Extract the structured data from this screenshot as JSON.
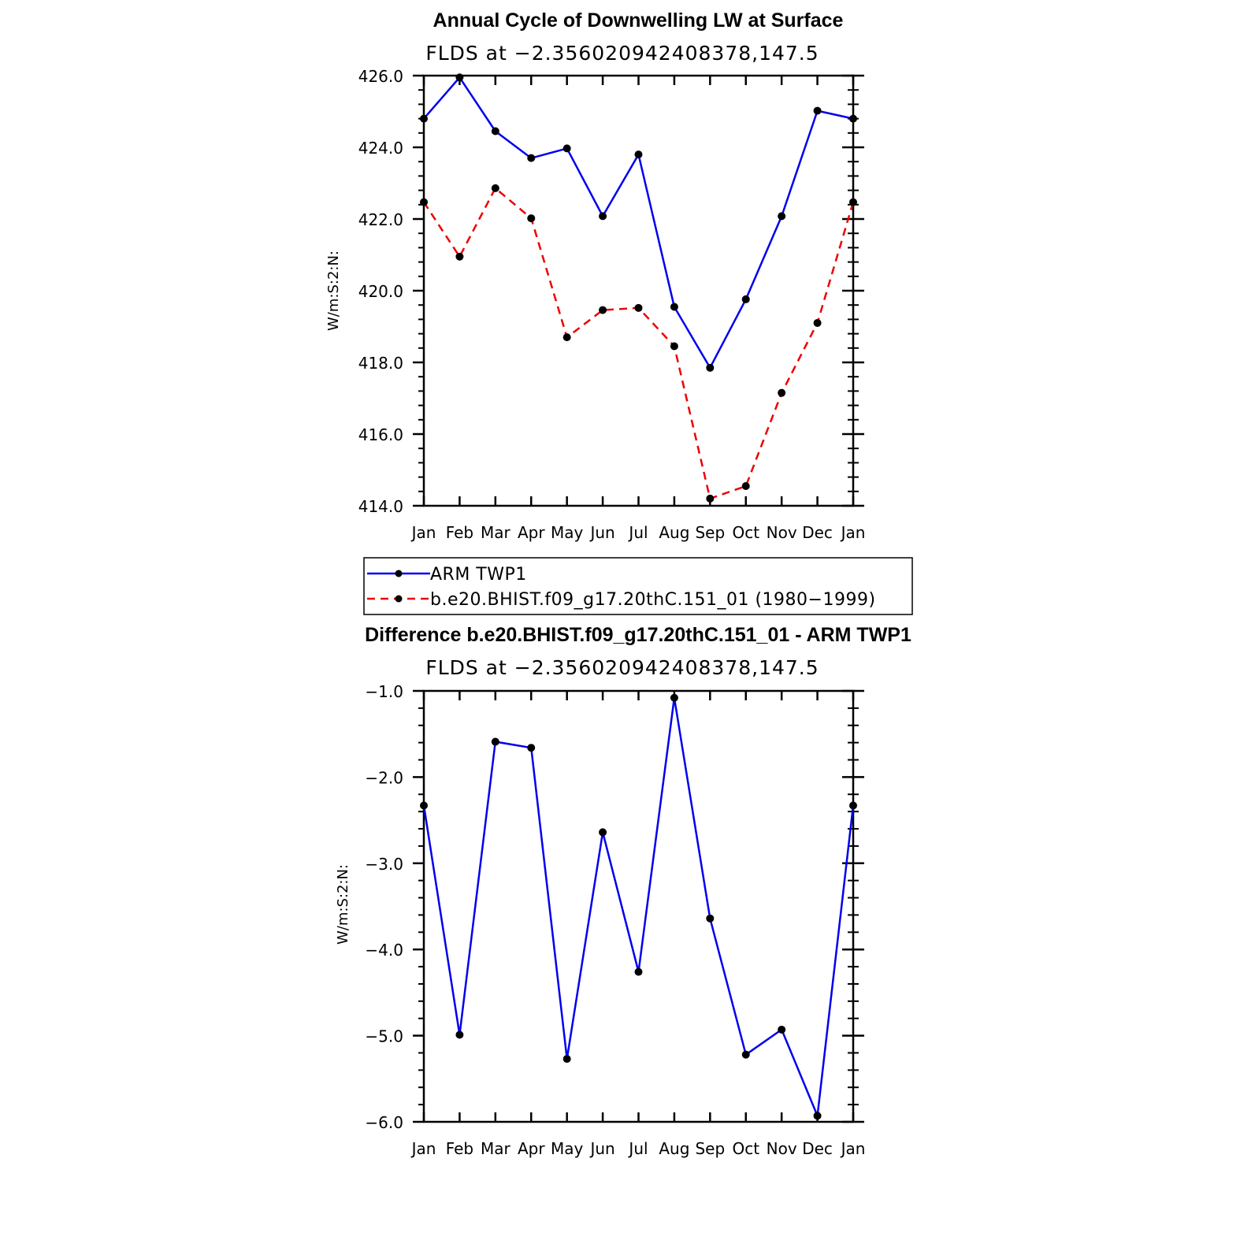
{
  "chart_data": [
    {
      "type": "line",
      "title": "Annual Cycle of Downwelling LW at Surface",
      "subtitle": "FLDS at −2.356020942408378,147.5",
      "xlabel": "",
      "ylabel": "W/m:S:2:N:",
      "categories": [
        "Jan",
        "Feb",
        "Mar",
        "Apr",
        "May",
        "Jun",
        "Jul",
        "Aug",
        "Sep",
        "Oct",
        "Nov",
        "Dec",
        "Jan"
      ],
      "ylim": [
        414.0,
        426.0
      ],
      "yticks": [
        "414.0",
        "416.0",
        "418.0",
        "420.0",
        "422.0",
        "424.0",
        "426.0"
      ],
      "series": [
        {
          "name": "ARM TWP1",
          "color": "#0000ee",
          "dash": "solid",
          "values": [
            424.8,
            425.95,
            424.45,
            423.7,
            423.97,
            422.08,
            423.8,
            419.55,
            417.85,
            419.76,
            422.08,
            425.02,
            424.8
          ]
        },
        {
          "name": "b.e20.BHIST.f09_g17.20thC.151_01 (1980−1999)",
          "color": "#ee0000",
          "dash": "dashed",
          "values": [
            422.47,
            420.95,
            422.86,
            422.02,
            418.7,
            419.46,
            419.52,
            418.45,
            414.2,
            414.55,
            417.15,
            419.1,
            422.47
          ]
        }
      ],
      "legend": {
        "placement": "below",
        "entries": [
          "ARM TWP1",
          "b.e20.BHIST.f09_g17.20thC.151_01 (1980−1999)"
        ]
      }
    },
    {
      "type": "line",
      "title": "Difference b.e20.BHIST.f09_g17.20thC.151_01 - ARM TWP1",
      "subtitle": "FLDS at −2.356020942408378,147.5",
      "xlabel": "",
      "ylabel": "W/m:S:2:N:",
      "categories": [
        "Jan",
        "Feb",
        "Mar",
        "Apr",
        "May",
        "Jun",
        "Jul",
        "Aug",
        "Sep",
        "Oct",
        "Nov",
        "Dec",
        "Jan"
      ],
      "ylim": [
        -6.0,
        -1.0
      ],
      "yticks": [
        "−6.0",
        "−5.0",
        "−4.0",
        "−3.0",
        "−2.0",
        "−1.0"
      ],
      "series": [
        {
          "name": "Difference",
          "color": "#0000ee",
          "dash": "solid",
          "values": [
            -2.33,
            -4.99,
            -1.59,
            -1.66,
            -5.27,
            -2.64,
            -4.26,
            -1.08,
            -3.64,
            -5.22,
            -4.93,
            -5.93,
            -2.33
          ]
        }
      ]
    }
  ]
}
